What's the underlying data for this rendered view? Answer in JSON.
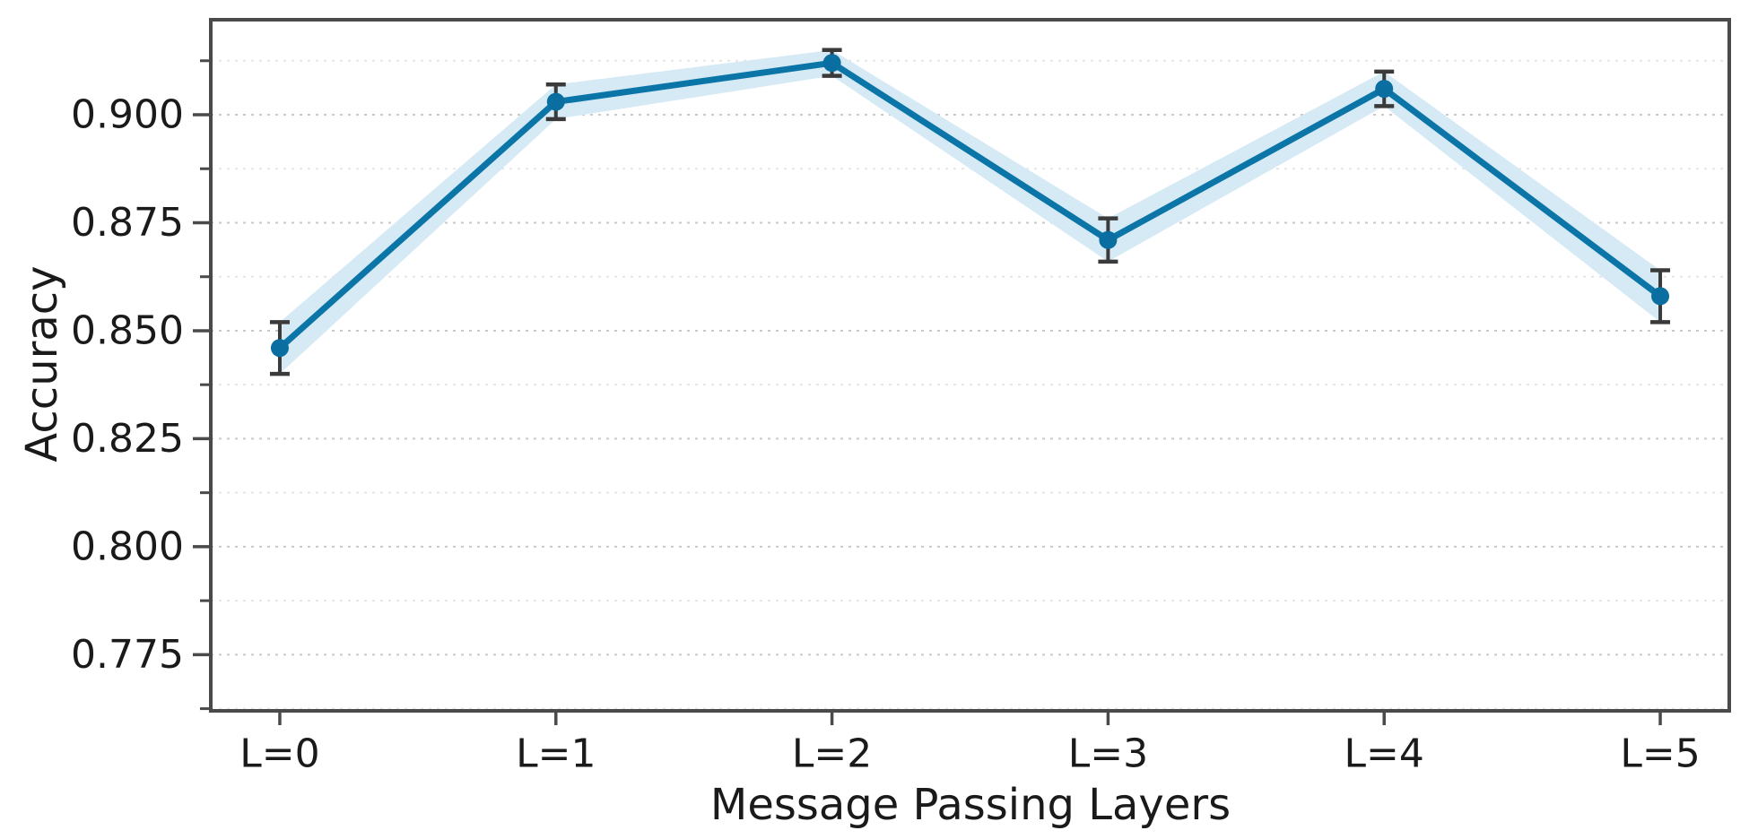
{
  "figure": {
    "background": "#ffffff"
  },
  "chart_data": {
    "type": "line",
    "title": "",
    "xlabel": "Message Passing Layers",
    "ylabel": "Accuracy",
    "categories": [
      "L=0",
      "L=1",
      "L=2",
      "L=3",
      "L=4",
      "L=5"
    ],
    "series": [
      {
        "name": "Accuracy",
        "values": [
          0.846,
          0.903,
          0.912,
          0.871,
          0.906,
          0.858
        ],
        "errors": [
          0.006,
          0.004,
          0.003,
          0.005,
          0.004,
          0.006
        ],
        "marker": "circle"
      }
    ],
    "ylim": [
      0.762,
      0.922
    ],
    "yticks": [
      0.775,
      0.8,
      0.825,
      0.85,
      0.875,
      0.9
    ],
    "ytick_labels": [
      "0.775",
      "0.800",
      "0.825",
      "0.850",
      "0.875",
      "0.900"
    ],
    "minor_ytick_step": 0.0125,
    "grid": "horizontal-dashed-major-and-minor",
    "legend_position": "none",
    "colors": {
      "line": "#0b75a8",
      "marker": "#0b6ea0",
      "band": "#d6eaf5",
      "error_bar": "#3a3a3a",
      "spine": "#4a4a4a",
      "grid_major": "#c9c9c9",
      "grid_minor": "#e5e5e5",
      "tick_text": "#1a1a1a"
    }
  }
}
